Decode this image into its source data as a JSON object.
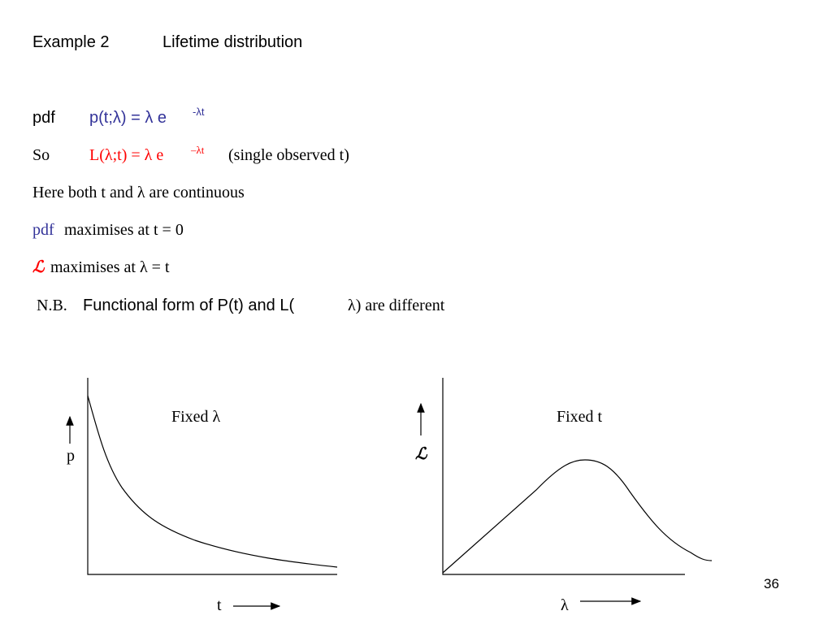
{
  "header": {
    "title": "Example 2",
    "subtitle": "Lifetime distribution"
  },
  "lines": [
    {
      "label": "pdf",
      "formula": "p(t;λ) = λ e",
      "exponent": "-λt"
    },
    {
      "label": "So",
      "formula": "L(λ;t) = λ e",
      "exponent": "–λt",
      "note": "(single observed t)"
    },
    {
      "text": "Here both t and λ are continuous"
    },
    {
      "label": "pdf",
      "text": "maximises at t = 0"
    },
    {
      "label": "ℒ",
      "text": "maximises at λ = t"
    },
    {
      "label": "N.B.",
      "text": "Functional form of P(t) and L(",
      "tail": "λ) are different"
    }
  ],
  "plots": [
    {
      "caption": "Fixed λ",
      "y_label": "p",
      "x_label": "t"
    },
    {
      "caption": "Fixed t",
      "y_label": "ℒ",
      "x_label": "λ"
    }
  ],
  "page_number": "36"
}
